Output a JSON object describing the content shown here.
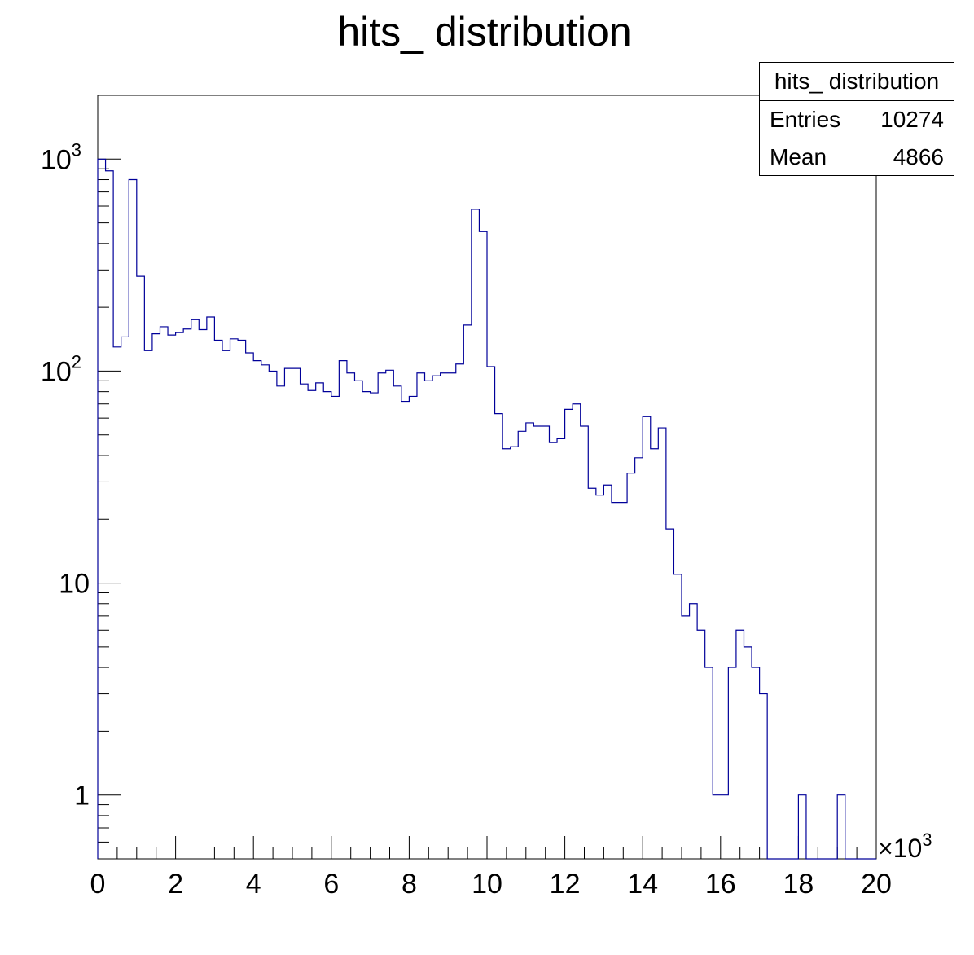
{
  "chart_data": {
    "type": "bar",
    "title": "hits_ distribution",
    "xlabel": "",
    "ylabel": "",
    "x_multiplier": "×10",
    "x_multiplier_exponent": "3",
    "xlim": [
      0,
      20000
    ],
    "ylim": [
      0.5,
      2000
    ],
    "y_scale": "log",
    "x_ticks": [
      "0",
      "2",
      "4",
      "6",
      "8",
      "10",
      "12",
      "14",
      "16",
      "18",
      "20"
    ],
    "y_ticks": [
      {
        "value": 1,
        "base": "1",
        "exp": ""
      },
      {
        "value": 10,
        "base": "10",
        "exp": ""
      },
      {
        "value": 100,
        "base": "10",
        "exp": "2"
      },
      {
        "value": 1000,
        "base": "10",
        "exp": "3"
      }
    ],
    "bin_width": 200,
    "bin_start": 0,
    "line_color": "#000099",
    "grid": false,
    "values": [
      1000,
      880,
      130,
      145,
      800,
      280,
      125,
      150,
      162,
      148,
      152,
      158,
      175,
      157,
      180,
      140,
      125,
      142,
      140,
      122,
      112,
      107,
      100,
      85,
      103,
      103,
      87,
      81,
      88,
      80,
      76,
      112,
      98,
      90,
      80,
      79,
      98,
      101,
      85,
      72,
      76,
      98,
      90,
      95,
      98,
      98,
      108,
      165,
      580,
      455,
      105,
      63,
      43,
      44,
      52,
      57,
      55,
      55,
      46,
      48,
      66,
      70,
      55,
      28,
      26,
      29,
      24,
      24,
      33,
      39,
      61,
      43,
      54,
      18,
      11,
      7,
      8,
      6,
      4,
      1,
      1,
      4,
      6,
      5,
      4,
      3,
      0,
      0,
      0,
      0,
      1,
      0,
      0,
      0,
      0,
      1,
      0,
      0,
      0,
      0
    ],
    "stats": {
      "title": "hits_ distribution",
      "entries_label": "Entries",
      "entries_value": "10274",
      "mean_label": "Mean",
      "mean_value": "4866"
    }
  }
}
